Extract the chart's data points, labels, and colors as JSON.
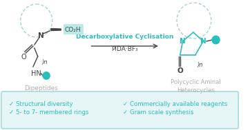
{
  "bg_color": "#ffffff",
  "teal": "#2abfbf",
  "teal_dashed": "#a0d4d4",
  "gray_text": "#b0b0b0",
  "dark_text": "#444444",
  "highlight_bg": "#b8eae8",
  "title_top": "Decarboxylative Cyclisation",
  "title_bottom": "PIDA·BF₃",
  "label_left": "Dipeptides",
  "label_right": "Polycyclic Aminal\nHeterocycles",
  "bullet1": "✓ Structural diversity",
  "bullet2": "✓ 5- to 7- membered rings",
  "bullet3": "✓ Commercially available reagents",
  "bullet4": "✓ Gram scale synthesis",
  "bottom_panel_color": "#e6f6f6",
  "bottom_panel_edge": "#80cccc"
}
